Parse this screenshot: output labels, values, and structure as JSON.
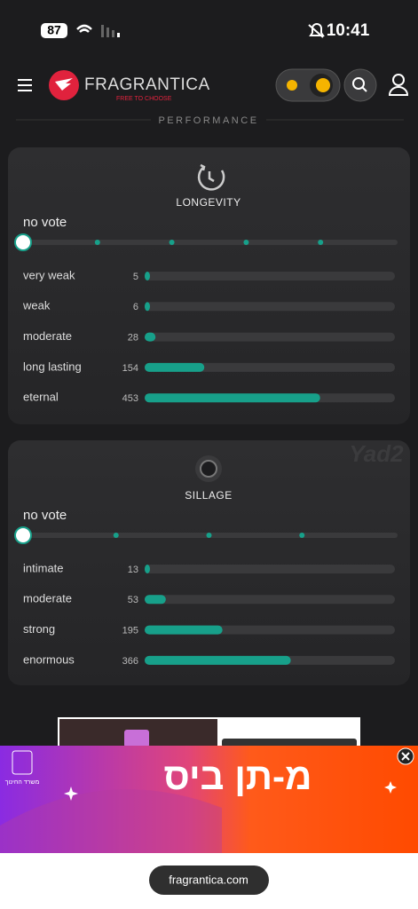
{
  "status_bar": {
    "battery": 87,
    "time": "10:41"
  },
  "header": {
    "brand": "FRAGRANTICA",
    "tagline": "FREE TO CHOOSE"
  },
  "section_title": "PERFORMANCE",
  "longevity": {
    "title": "LONGEVITY",
    "vote_status": "no vote",
    "options": [
      {
        "label": "very weak",
        "votes": 5
      },
      {
        "label": "weak",
        "votes": 6
      },
      {
        "label": "moderate",
        "votes": 28
      },
      {
        "label": "long lasting",
        "votes": 154
      },
      {
        "label": "eternal",
        "votes": 453
      }
    ]
  },
  "sillage": {
    "title": "SILLAGE",
    "vote_status": "no vote",
    "watermark": "Yad2",
    "options": [
      {
        "label": "intimate",
        "votes": 13
      },
      {
        "label": "moderate",
        "votes": 53
      },
      {
        "label": "strong",
        "votes": 195
      },
      {
        "label": "enormous",
        "votes": 366
      }
    ]
  },
  "ad": {
    "headline": "מ-תן ביס",
    "sponsor": "משרד החינוך"
  },
  "browser": {
    "url": "fragrantica.com"
  }
}
